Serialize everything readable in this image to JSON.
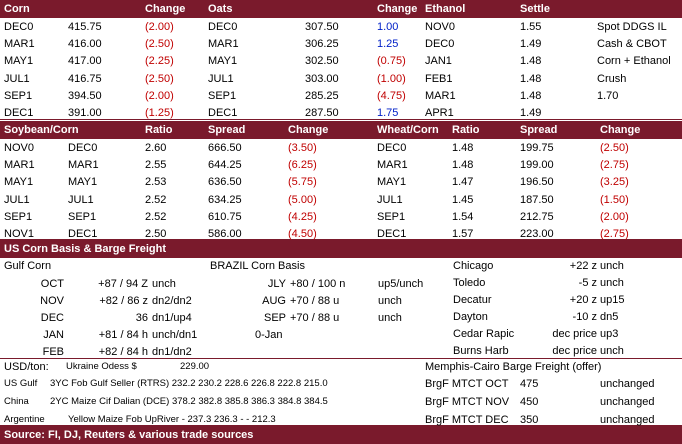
{
  "corn_table": {
    "headers": [
      "Corn",
      "Change",
      "Oats",
      "Change",
      "Ethanol",
      "Settle"
    ],
    "rows": [
      [
        "DEC0",
        "415.75",
        "(2.00)",
        "DEC0",
        "307.50",
        "1.00",
        "NOV0",
        "1.55",
        "Spot DDGS IL"
      ],
      [
        "MAR1",
        "416.00",
        "(2.50)",
        "MAR1",
        "306.25",
        "1.25",
        "DEC0",
        "1.49",
        "Cash & CBOT"
      ],
      [
        "MAY1",
        "417.00",
        "(2.25)",
        "MAY1",
        "302.50",
        "(0.75)",
        "JAN1",
        "1.48",
        "Corn + Ethanol"
      ],
      [
        "JUL1",
        "416.75",
        "(2.50)",
        "JUL1",
        "303.00",
        "(1.00)",
        "FEB1",
        "1.48",
        "Crush"
      ],
      [
        "SEP1",
        "394.50",
        "(2.00)",
        "SEP1",
        "285.25",
        "(4.75)",
        "MAR1",
        "1.48",
        "1.70"
      ],
      [
        "DEC1",
        "391.00",
        "(1.25)",
        "DEC1",
        "287.50",
        "1.75",
        "APR1",
        "1.49"
      ]
    ]
  },
  "spread_table": {
    "headers": [
      "Soybean/Corn",
      "Ratio",
      "Spread",
      "Change",
      "Wheat/Corn",
      "Ratio",
      "Spread",
      "Change"
    ],
    "rows": [
      [
        "NOV0",
        "DEC0",
        "2.60",
        "666.50",
        "(3.50)",
        "DEC0",
        "1.48",
        "199.75",
        "(2.50)"
      ],
      [
        "MAR1",
        "MAR1",
        "2.55",
        "644.25",
        "(6.25)",
        "MAR1",
        "1.48",
        "199.00",
        "(2.75)"
      ],
      [
        "MAY1",
        "MAY1",
        "2.53",
        "636.50",
        "(5.75)",
        "MAY1",
        "1.47",
        "196.50",
        "(3.25)"
      ],
      [
        "JUL1",
        "JUL1",
        "2.52",
        "634.25",
        "(5.00)",
        "JUL1",
        "1.45",
        "187.50",
        "(1.50)"
      ],
      [
        "SEP1",
        "SEP1",
        "2.52",
        "610.75",
        "(4.25)",
        "SEP1",
        "1.54",
        "212.75",
        "(2.00)"
      ],
      [
        "NOV1",
        "DEC1",
        "2.50",
        "586.00",
        "(4.50)",
        "DEC1",
        "1.57",
        "223.00",
        "(2.75)"
      ]
    ]
  },
  "basis": {
    "title": "US Corn Basis & Barge Freight",
    "gulf_title": "Gulf Corn",
    "gulf_rows": [
      [
        "OCT",
        "+87 / 94 Z",
        "unch"
      ],
      [
        "NOV",
        "+82 / 86 z",
        "dn2/dn2"
      ],
      [
        "DEC",
        "36",
        "dn1/up4"
      ],
      [
        "JAN",
        "+81 / 84 h",
        "unch/dn1"
      ],
      [
        "FEB",
        "+82 / 84 h",
        "dn1/dn2"
      ]
    ],
    "brazil_title": "BRAZIL Corn Basis",
    "brazil_rows": [
      [
        "JLY",
        "+80 / 100 n",
        "up5/unch"
      ],
      [
        "AUG",
        "+70 / 88 u",
        "unch"
      ],
      [
        "SEP",
        "+70 / 88 u",
        "unch"
      ]
    ],
    "brazil_note": "0-Jan",
    "interior_rows": [
      [
        "Chicago",
        "+22 z",
        "unch"
      ],
      [
        "Toledo",
        "-5 z",
        "unch"
      ],
      [
        "Decatur",
        "+20 z",
        "up15"
      ],
      [
        "Dayton",
        "-10 z",
        "dn5"
      ],
      [
        "Cedar Rapic",
        "dec price",
        "up3"
      ],
      [
        "Burns Harb",
        "dec price",
        "unch"
      ]
    ]
  },
  "freight": {
    "usd_label": "USD/ton:",
    "ukraine_label": "Ukraine Odess $",
    "ukraine_value": "229.00",
    "barge_title": "Memphis-Cairo Barge Freight (offer)",
    "rows": [
      [
        "US Gulf",
        "3YC Fob Gulf Seller (RTRS) 232.2 230.2 228.6 226.8 222.8 215.0"
      ],
      [
        "China",
        "2YC Maize Cif Dalian (DCE) 378.2 382.8 385.8 386.3 384.8 384.5"
      ],
      [
        "Argentine",
        "Yellow Maize Fob UpRiver - 237.3 236.3 - - 212.3"
      ]
    ],
    "barge_rows": [
      [
        "BrgF MTCT OCT",
        "475",
        "unchanged"
      ],
      [
        "BrgF MTCT NOV",
        "450",
        "unchanged"
      ],
      [
        "BrgF MTCT DEC",
        "350",
        "unchanged"
      ]
    ]
  },
  "footer": "Source: FI, DJ, Reuters & various trade sources"
}
